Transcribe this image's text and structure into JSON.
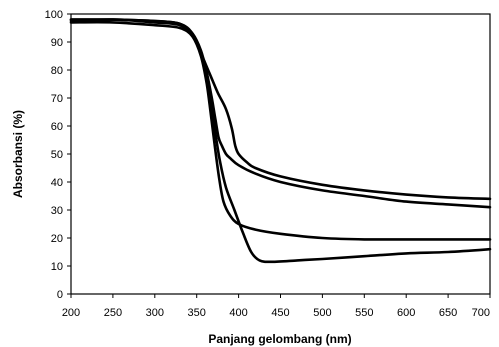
{
  "chart_data": {
    "type": "line",
    "title": "",
    "xlabel": "Panjang gelombang (nm)",
    "ylabel": "Absorbansi (%)",
    "xlim": [
      200,
      700
    ],
    "ylim": [
      0,
      100
    ],
    "xticks": [
      "200",
      "250",
      "300",
      "350",
      "400",
      "450",
      "500",
      "550",
      "600",
      "650",
      "700"
    ],
    "yticks": [
      "0",
      "10",
      "20",
      "30",
      "40",
      "50",
      "60",
      "70",
      "80",
      "90",
      "100"
    ],
    "grid": false,
    "legend": "none",
    "line_color": "#000000",
    "series": [
      {
        "x": [
          200,
          250,
          300,
          330,
          345,
          355,
          362,
          368,
          372,
          376,
          380,
          385,
          390,
          400,
          420,
          450,
          500,
          550,
          600,
          650,
          700
        ],
        "y": [
          98,
          98,
          97.5,
          96.5,
          93,
          87,
          79,
          70,
          63,
          56,
          53,
          50,
          48.5,
          46,
          43,
          40,
          37,
          35,
          33,
          32,
          31
        ]
      },
      {
        "x": [
          200,
          250,
          300,
          330,
          345,
          355,
          365,
          375,
          385,
          392,
          396,
          400,
          410,
          420,
          450,
          500,
          550,
          600,
          650,
          700
        ],
        "y": [
          97,
          97,
          96,
          95,
          92,
          86,
          79,
          72,
          66,
          59,
          53,
          50,
          47,
          45,
          42,
          39,
          37,
          35.5,
          34.5,
          34
        ]
      },
      {
        "x": [
          200,
          250,
          300,
          330,
          345,
          355,
          362,
          367,
          372,
          377,
          382,
          390,
          400,
          420,
          450,
          500,
          550,
          600,
          650,
          700
        ],
        "y": [
          97.5,
          98,
          97,
          96,
          92,
          85,
          75,
          64,
          52,
          41,
          33,
          28,
          25,
          23,
          21.5,
          20,
          19.5,
          19.5,
          19.5,
          19.5
        ]
      },
      {
        "x": [
          200,
          250,
          300,
          330,
          345,
          355,
          362,
          367,
          372,
          378,
          385,
          395,
          405,
          415,
          425,
          440,
          470,
          500,
          550,
          600,
          650,
          700
        ],
        "y": [
          98,
          98,
          97.5,
          96.5,
          93,
          86,
          77,
          68,
          58,
          47,
          38,
          30,
          22,
          15,
          12,
          11.5,
          12,
          12.5,
          13.5,
          14.5,
          15,
          16
        ]
      }
    ]
  }
}
